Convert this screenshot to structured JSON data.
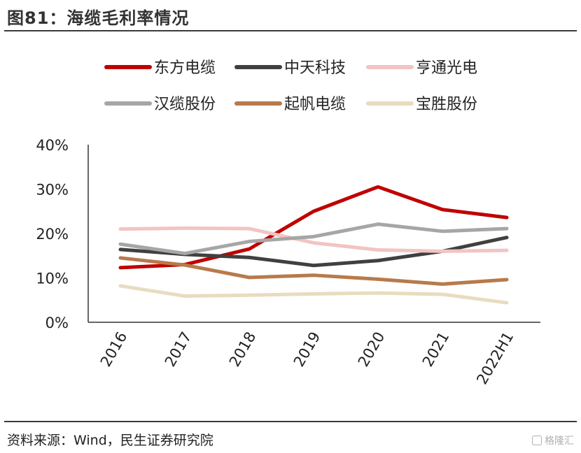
{
  "header": {
    "title": "图81：海缆毛利率情况"
  },
  "footer": {
    "source": "资料来源：Wind，民生证券研究院",
    "watermark": "格隆汇"
  },
  "chart_data": {
    "type": "line",
    "title": "",
    "xlabel": "",
    "ylabel": "",
    "categories": [
      "2016",
      "2017",
      "2018",
      "2019",
      "2020",
      "2021",
      "2022H1"
    ],
    "ylim": [
      0,
      40
    ],
    "yticks": [
      0,
      10,
      20,
      30,
      40
    ],
    "ytick_labels": [
      "0%",
      "10%",
      "20%",
      "30%",
      "40%"
    ],
    "grid": false,
    "legend_position": "top",
    "series": [
      {
        "name": "东方电缆",
        "color": "#c00000",
        "values": [
          12.3,
          13.0,
          16.5,
          25.0,
          30.5,
          25.4,
          23.6
        ]
      },
      {
        "name": "中天科技",
        "color": "#404040",
        "values": [
          16.4,
          15.3,
          14.6,
          12.8,
          13.9,
          16.0,
          19.1
        ]
      },
      {
        "name": "亨通光电",
        "color": "#f2c4c4",
        "values": [
          21.0,
          21.2,
          21.1,
          17.9,
          16.3,
          16.0,
          16.2
        ]
      },
      {
        "name": "汉缆股份",
        "color": "#a6a6a6",
        "values": [
          17.6,
          15.5,
          18.2,
          19.3,
          22.1,
          20.5,
          21.1
        ]
      },
      {
        "name": "起帆电缆",
        "color": "#b87a4b",
        "values": [
          14.5,
          12.9,
          10.1,
          10.6,
          9.7,
          8.6,
          9.6
        ]
      },
      {
        "name": "宝胜股份",
        "color": "#e8dcc0",
        "values": [
          8.2,
          5.9,
          6.1,
          6.4,
          6.6,
          6.3,
          4.4
        ]
      }
    ]
  }
}
